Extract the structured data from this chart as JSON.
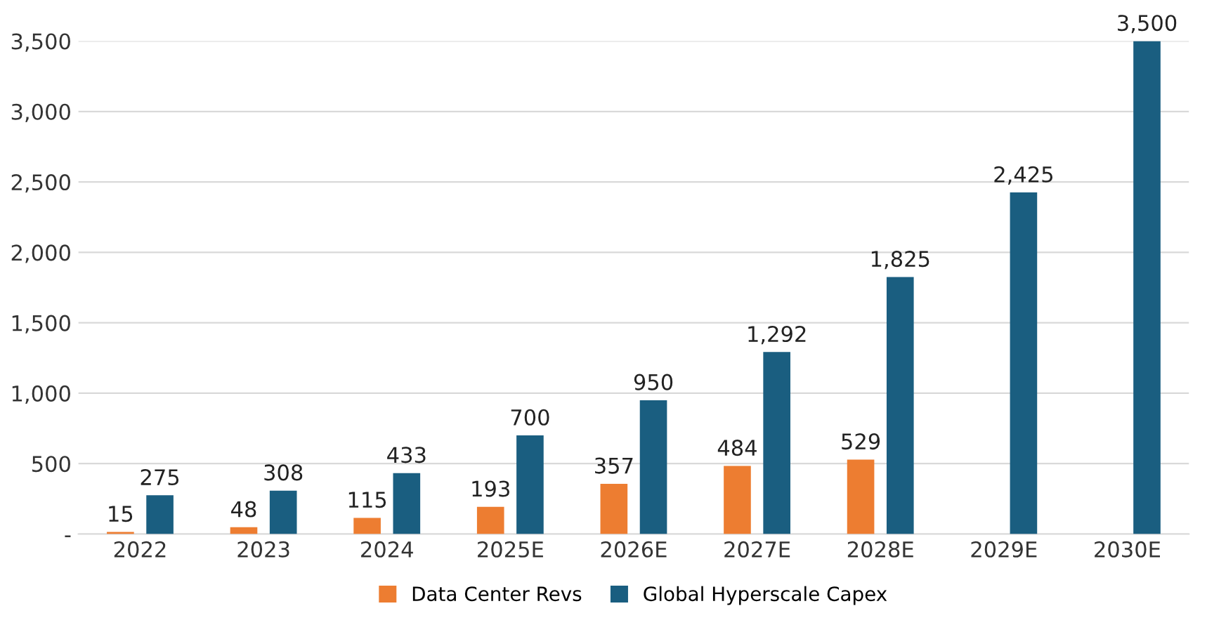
{
  "chart_data": {
    "type": "bar",
    "categories": [
      "2022",
      "2023",
      "2024",
      "2025E",
      "2026E",
      "2027E",
      "2028E",
      "2029E",
      "2030E"
    ],
    "series": [
      {
        "name": "Data Center Revs",
        "color": "#ed7d31",
        "values": [
          15,
          48,
          115,
          193,
          357,
          484,
          529,
          null,
          null
        ],
        "value_labels": [
          "15",
          "48",
          "115",
          "193",
          "357",
          "484",
          "529",
          null,
          null
        ]
      },
      {
        "name": "Global Hyperscale Capex",
        "color": "#1a5e80",
        "values": [
          275,
          308,
          433,
          700,
          950,
          1292,
          1825,
          2425,
          3500
        ],
        "value_labels": [
          "275",
          "308",
          "433",
          "700",
          "950",
          "1,292",
          "1,825",
          "2,425",
          "3,500"
        ]
      }
    ],
    "ylim": [
      0,
      3500
    ],
    "yticks": [
      {
        "value": 0,
        "label": "-"
      },
      {
        "value": 500,
        "label": "500"
      },
      {
        "value": 1000,
        "label": "1,000"
      },
      {
        "value": 1500,
        "label": "1,500"
      },
      {
        "value": 2000,
        "label": "2,000"
      },
      {
        "value": 2500,
        "label": "2,500"
      },
      {
        "value": 3000,
        "label": "3,000"
      },
      {
        "value": 3500,
        "label": "3,500"
      }
    ],
    "grid": "y",
    "legend": "bottom"
  }
}
